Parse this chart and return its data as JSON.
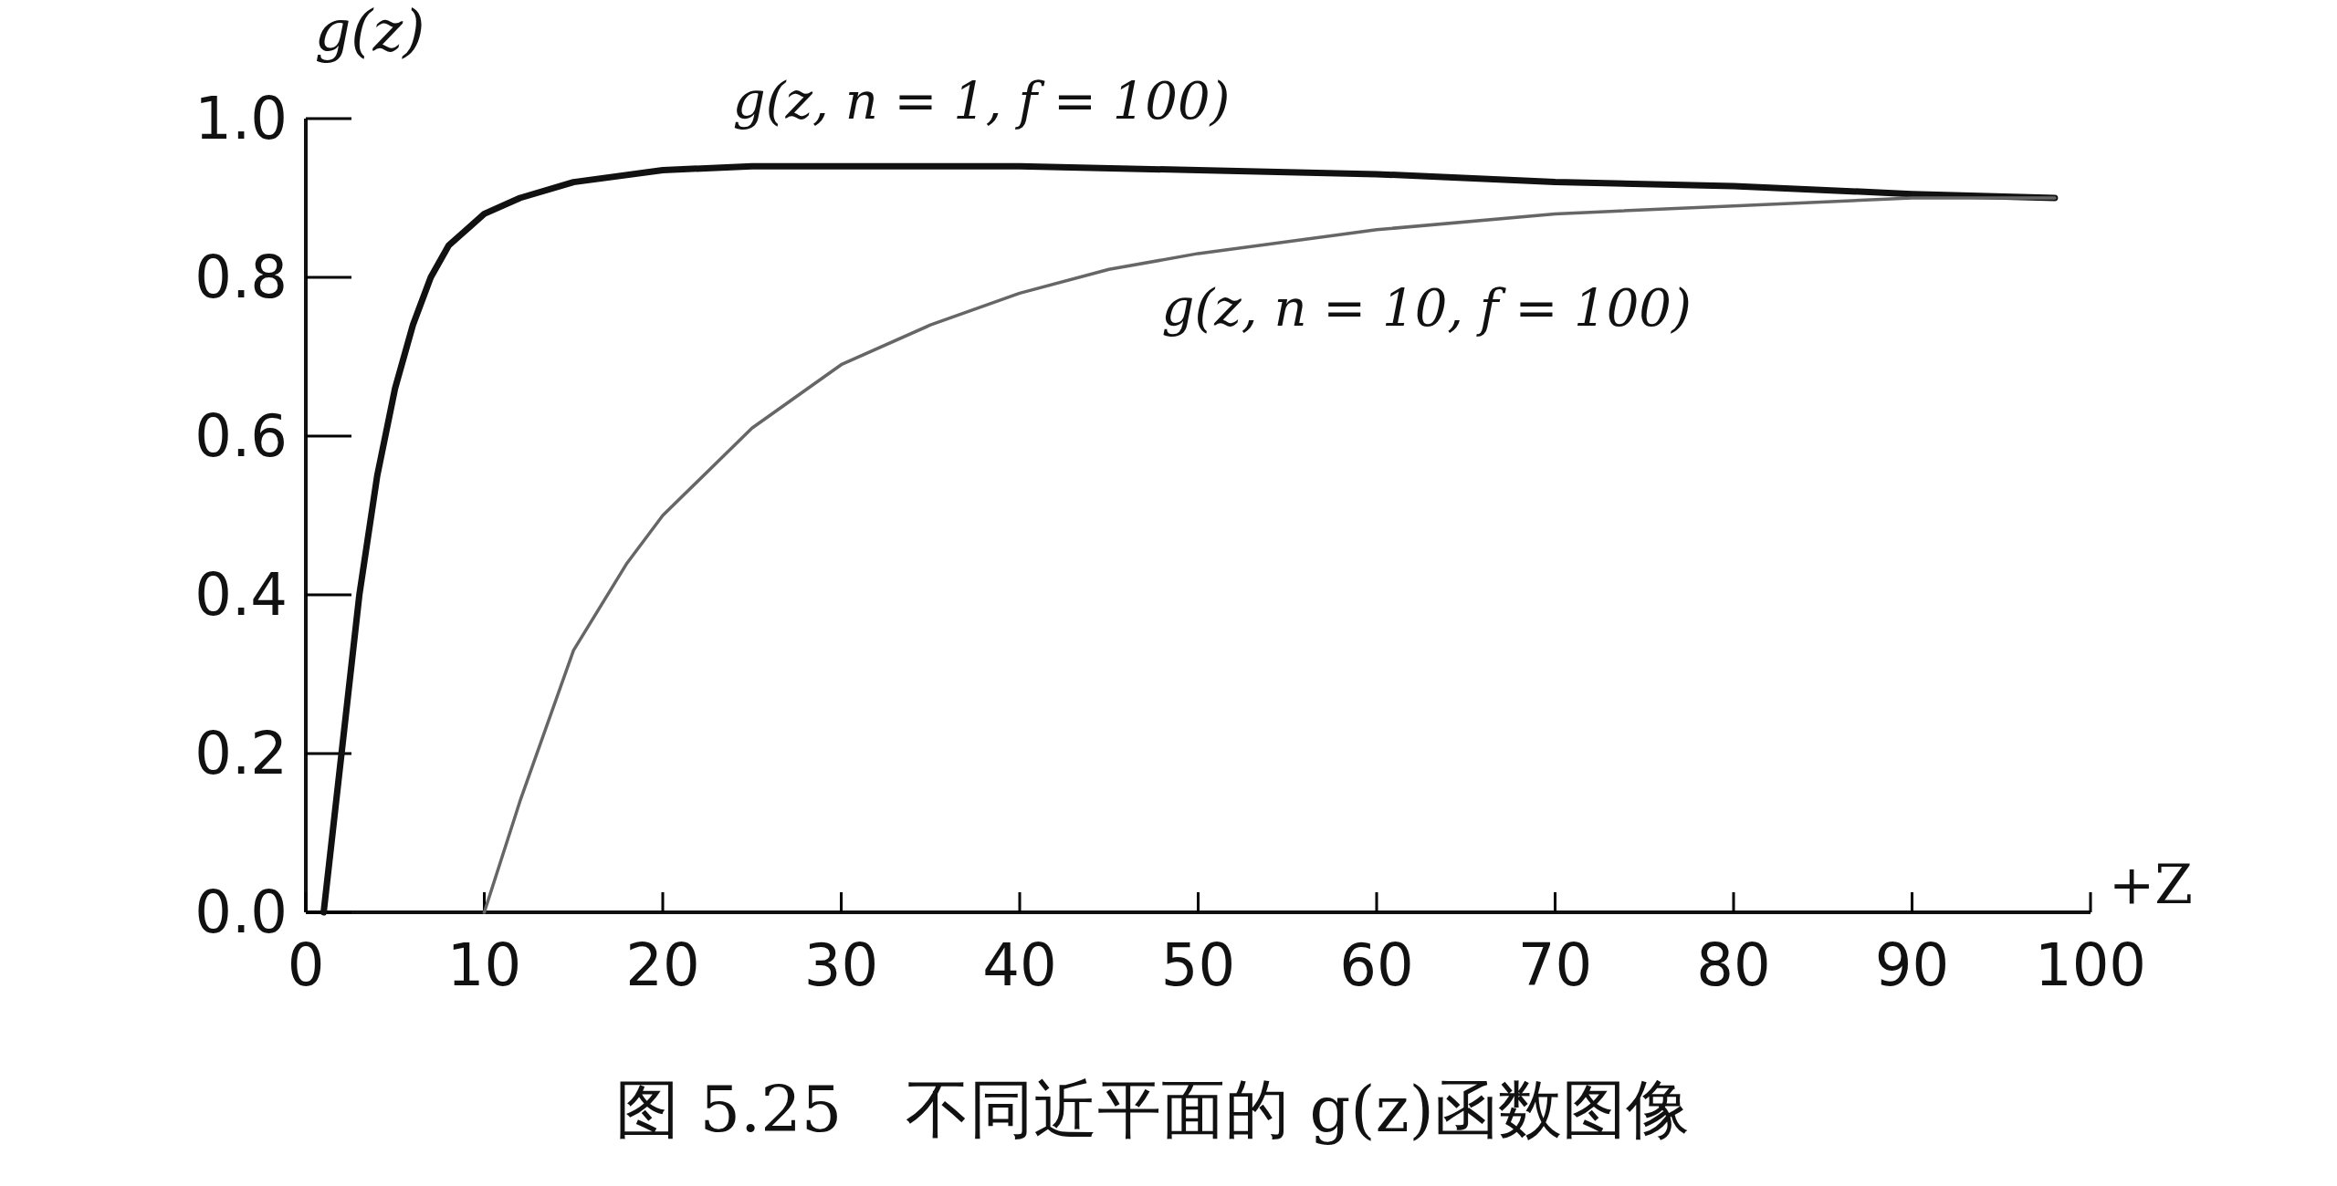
{
  "chart_data": {
    "type": "line",
    "xlabel": "+Z",
    "ylabel": "g(z)",
    "annotations": [
      "图 5.25　不同近平面的 g(z)函数图像"
    ],
    "xlim": [
      0,
      100
    ],
    "ylim": [
      0,
      1
    ],
    "xticks": [
      0,
      10,
      20,
      30,
      40,
      50,
      60,
      70,
      80,
      90,
      100
    ],
    "yticks": [
      {
        "value": 0,
        "label": "0.0"
      },
      0.2,
      0.4,
      0.6,
      0.8,
      {
        "value": 1,
        "label": "1.0"
      }
    ],
    "grid": false,
    "legend": false,
    "marker": "none",
    "line_style": "solid",
    "series": [
      {
        "name": "g(z, n = 1, f = 100)",
        "color": "#111111",
        "x": [
          1,
          2,
          3,
          4,
          5,
          6,
          7,
          8,
          10,
          12,
          15,
          20,
          25,
          30,
          40,
          50,
          60,
          70,
          80,
          90,
          98
        ],
        "values": [
          0,
          0.2,
          0.4,
          0.55,
          0.66,
          0.74,
          0.8,
          0.84,
          0.88,
          0.9,
          0.92,
          0.935,
          0.94,
          0.94,
          0.94,
          0.935,
          0.93,
          0.92,
          0.915,
          0.905,
          0.9
        ]
      },
      {
        "name": "g(z, n = 10, f = 100)",
        "color": "#666666",
        "x": [
          10,
          12,
          15,
          18,
          20,
          25,
          30,
          35,
          40,
          45,
          50,
          60,
          70,
          80,
          90,
          98
        ],
        "values": [
          0,
          0.14,
          0.33,
          0.44,
          0.5,
          0.61,
          0.69,
          0.74,
          0.78,
          0.81,
          0.83,
          0.86,
          0.88,
          0.89,
          0.9,
          0.9
        ]
      }
    ]
  }
}
